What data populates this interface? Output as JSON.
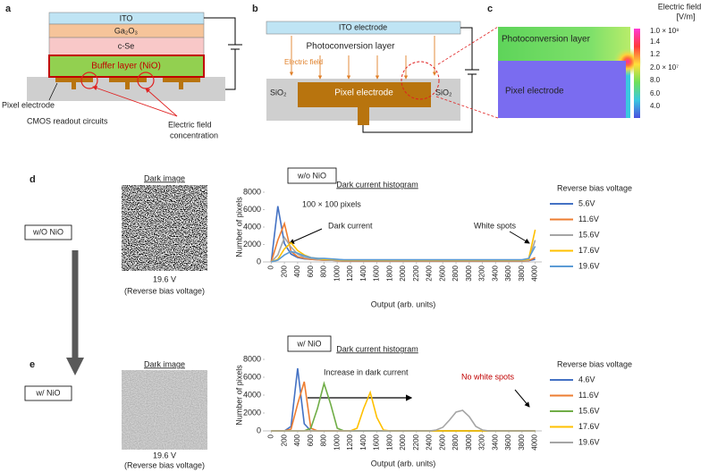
{
  "panel_labels": [
    "a",
    "b",
    "c",
    "d",
    "e"
  ],
  "panel_a": {
    "layers": [
      "ITO",
      "Ga₂O₃",
      "c-Se",
      "Buffer layer (NiO)"
    ],
    "pixel_electrode": "Pixel electrode",
    "cmos": "CMOS readout circuits",
    "field_concentration": [
      "Electric field",
      "concentration"
    ]
  },
  "panel_b": {
    "ito": "ITO electrode",
    "photoconversion": "Photoconversion layer",
    "field": "Electric field",
    "sio2_left": "SiO₂",
    "pixel": "Pixel electrode",
    "sio2_right": "SiO₂"
  },
  "panel_c": {
    "title": [
      "Electric field",
      "[V/m]"
    ],
    "photoconversion": "Photoconversion layer",
    "pixel": "Pixel electrode",
    "colorbar_labels": [
      "1.0 × 10⁸",
      "1.4",
      "1.2",
      "2.0 × 10⁷",
      "8.0",
      "6.0",
      "4.0"
    ]
  },
  "panel_d": {
    "condition": "w/O NiO",
    "image_title": "Dark image",
    "voltage": "19.6 V",
    "voltage_note": "(Reverse bias voltage)"
  },
  "panel_e": {
    "condition": "w/ NiO",
    "image_title": "Dark image",
    "voltage": "19.6 V",
    "voltage_note": "(Reverse bias voltage)"
  },
  "chart_data": [
    {
      "type": "line",
      "condition": "w/o NiO",
      "title": "Dark current histogram",
      "annotations": [
        "100 × 100 pixels",
        "Dark current",
        "White spots"
      ],
      "xlabel": "Output (arb. units)",
      "ylabel": "Number of pixels",
      "legend_title": "Reverse bias voltage",
      "x": [
        0,
        100,
        200,
        300,
        400,
        500,
        600,
        700,
        800,
        900,
        1000,
        1100,
        1200,
        1300,
        1400,
        1500,
        1600,
        1700,
        1800,
        1900,
        2000,
        2100,
        2200,
        2300,
        2400,
        2500,
        2600,
        2700,
        2800,
        2900,
        3000,
        3100,
        3200,
        3300,
        3400,
        3500,
        3600,
        3700,
        3800,
        3900,
        4000
      ],
      "xlim": [
        -100,
        4100
      ],
      "ylim": [
        0,
        8000
      ],
      "xticks": [
        0,
        200,
        400,
        600,
        800,
        1000,
        1200,
        1400,
        1600,
        1800,
        2000,
        2200,
        2400,
        2600,
        2800,
        3000,
        3200,
        3400,
        3600,
        3800,
        4000
      ],
      "yticks": [
        0,
        2000,
        4000,
        6000,
        8000
      ],
      "series": [
        {
          "name": "5.6V",
          "color": "#4472c4",
          "values": [
            0,
            6400,
            2100,
            900,
            500,
            350,
            300,
            250,
            200,
            200,
            150,
            100,
            100,
            100,
            100,
            100,
            100,
            100,
            100,
            100,
            100,
            100,
            100,
            100,
            100,
            100,
            100,
            100,
            100,
            100,
            100,
            100,
            100,
            100,
            100,
            100,
            100,
            100,
            100,
            150,
            300
          ]
        },
        {
          "name": "11.6V",
          "color": "#ed7d31",
          "values": [
            0,
            2500,
            4400,
            1200,
            600,
            400,
            300,
            250,
            200,
            200,
            150,
            100,
            100,
            100,
            100,
            100,
            100,
            100,
            100,
            100,
            100,
            100,
            100,
            100,
            100,
            100,
            100,
            100,
            100,
            100,
            100,
            100,
            100,
            100,
            100,
            100,
            100,
            100,
            100,
            150,
            500
          ]
        },
        {
          "name": "15.6V",
          "color": "#a5a5a5",
          "values": [
            0,
            800,
            2800,
            1700,
            900,
            500,
            400,
            300,
            250,
            200,
            200,
            150,
            150,
            150,
            150,
            150,
            150,
            150,
            150,
            150,
            150,
            150,
            150,
            150,
            150,
            150,
            150,
            150,
            150,
            150,
            150,
            150,
            150,
            150,
            150,
            150,
            150,
            150,
            150,
            200,
            2500
          ]
        },
        {
          "name": "17.6V",
          "color": "#ffc000",
          "values": [
            0,
            300,
            1500,
            2200,
            1300,
            800,
            500,
            400,
            300,
            300,
            250,
            200,
            200,
            200,
            200,
            200,
            200,
            200,
            200,
            200,
            200,
            200,
            200,
            200,
            200,
            200,
            200,
            200,
            200,
            200,
            200,
            200,
            200,
            200,
            200,
            200,
            200,
            200,
            200,
            300,
            3700
          ]
        },
        {
          "name": "19.6V",
          "color": "#5b9bd5",
          "values": [
            0,
            200,
            800,
            1200,
            1000,
            700,
            500,
            400,
            400,
            350,
            300,
            250,
            250,
            250,
            250,
            250,
            250,
            250,
            250,
            250,
            250,
            250,
            250,
            250,
            250,
            250,
            250,
            250,
            250,
            250,
            250,
            250,
            250,
            250,
            250,
            250,
            250,
            250,
            250,
            400,
            1800
          ]
        }
      ]
    },
    {
      "type": "line",
      "condition": "w/ NiO",
      "title": "Dark current histogram",
      "annotations": [
        "Increase in dark current",
        "No white spots"
      ],
      "xlabel": "Output (arb. units)",
      "ylabel": "Number of pixels",
      "legend_title": "Reverse bias voltage",
      "x": [
        0,
        100,
        200,
        300,
        400,
        500,
        600,
        700,
        800,
        900,
        1000,
        1100,
        1200,
        1300,
        1400,
        1500,
        1600,
        1700,
        1800,
        1900,
        2000,
        2100,
        2200,
        2300,
        2400,
        2500,
        2600,
        2700,
        2800,
        2900,
        3000,
        3100,
        3200,
        3300,
        3400,
        3500,
        3600,
        3700,
        3800,
        3900,
        4000
      ],
      "xlim": [
        -100,
        4100
      ],
      "ylim": [
        0,
        8000
      ],
      "xticks": [
        0,
        200,
        400,
        600,
        800,
        1000,
        1200,
        1400,
        1600,
        1800,
        2000,
        2200,
        2400,
        2600,
        2800,
        3000,
        3200,
        3400,
        3600,
        3800,
        4000
      ],
      "yticks": [
        0,
        2000,
        4000,
        6000,
        8000
      ],
      "series": [
        {
          "name": "4.6V",
          "color": "#4472c4",
          "values": [
            0,
            0,
            0,
            500,
            7000,
            800,
            0,
            0,
            0,
            0,
            0,
            0,
            0,
            0,
            0,
            0,
            0,
            0,
            0,
            0,
            0,
            0,
            0,
            0,
            0,
            0,
            0,
            0,
            0,
            0,
            0,
            0,
            0,
            0,
            0,
            0,
            0,
            0,
            0,
            0,
            0
          ]
        },
        {
          "name": "11.6V",
          "color": "#ed7d31",
          "values": [
            0,
            0,
            0,
            200,
            3000,
            5500,
            300,
            0,
            0,
            0,
            0,
            0,
            0,
            0,
            0,
            0,
            0,
            0,
            0,
            0,
            0,
            0,
            0,
            0,
            0,
            0,
            0,
            0,
            0,
            0,
            0,
            0,
            0,
            0,
            0,
            0,
            0,
            0,
            0,
            0,
            0
          ]
        },
        {
          "name": "15.6V",
          "color": "#70ad47",
          "values": [
            0,
            0,
            0,
            0,
            0,
            0,
            300,
            2500,
            5300,
            3000,
            300,
            0,
            0,
            0,
            0,
            0,
            0,
            0,
            0,
            0,
            0,
            0,
            0,
            0,
            0,
            0,
            0,
            0,
            0,
            0,
            0,
            0,
            0,
            0,
            0,
            0,
            0,
            0,
            0,
            0,
            0
          ]
        },
        {
          "name": "17.6V",
          "color": "#ffc000",
          "values": [
            0,
            0,
            0,
            0,
            0,
            0,
            0,
            0,
            0,
            0,
            0,
            0,
            0,
            300,
            2500,
            4300,
            1500,
            100,
            0,
            0,
            0,
            0,
            0,
            0,
            0,
            0,
            0,
            0,
            0,
            0,
            0,
            0,
            0,
            0,
            0,
            0,
            0,
            0,
            0,
            0,
            0
          ]
        },
        {
          "name": "19.6V",
          "color": "#a5a5a5",
          "values": [
            0,
            0,
            0,
            0,
            0,
            0,
            0,
            0,
            0,
            0,
            0,
            0,
            0,
            0,
            0,
            0,
            0,
            0,
            0,
            0,
            0,
            0,
            0,
            0,
            0,
            100,
            400,
            1200,
            2100,
            2300,
            1600,
            500,
            100,
            0,
            0,
            0,
            0,
            0,
            0,
            0,
            0
          ]
        }
      ]
    }
  ]
}
